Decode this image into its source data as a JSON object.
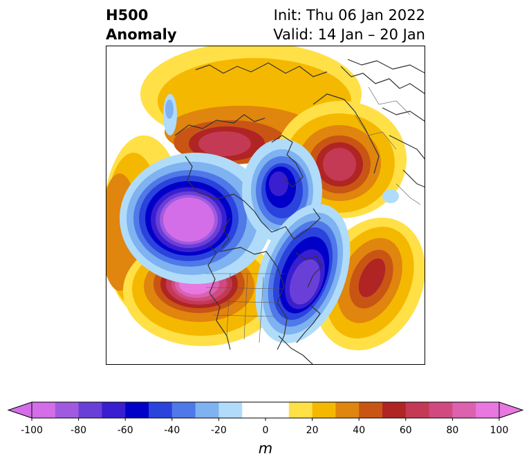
{
  "title": {
    "left_line1": "H500",
    "left_line2": "Anomaly",
    "init": "Init: Thu 06 Jan 2022",
    "valid": "Valid: 14 Jan – 20 Jan"
  },
  "colorbar": {
    "unit": "m",
    "min": -100,
    "max": 100,
    "step": 10,
    "tick_labels": [
      "-100",
      "-80",
      "-60",
      "-40",
      "-20",
      "0",
      "20",
      "40",
      "60",
      "80",
      "100"
    ],
    "colors": [
      "#d36ee8",
      "#a05ae0",
      "#6a3fd8",
      "#3a1fd0",
      "#0000c8",
      "#2a43dc",
      "#4f78e8",
      "#7fb2f0",
      "#b0dcfa",
      "#ffffff",
      "#ffffff",
      "#ffe047",
      "#f5b800",
      "#e0850e",
      "#c95514",
      "#b02424",
      "#c43a55",
      "#d04a80",
      "#dc62b0",
      "#e878e0"
    ],
    "under_color": "#d36ee8",
    "over_color": "#e878e0"
  },
  "map": {
    "projection": "north-polar-stereographic",
    "ocean_color": "#ffffff",
    "coast_color": "#333333",
    "anomaly_centers": [
      {
        "name": "gulf-of-alaska-low",
        "value": -100
      },
      {
        "name": "western-us-high",
        "value": 100
      },
      {
        "name": "eastern-canada-low",
        "value": -80
      },
      {
        "name": "north-atlantic-high",
        "value": 60
      },
      {
        "name": "siberia-high",
        "value": 70
      },
      {
        "name": "europe-high",
        "value": 70
      },
      {
        "name": "arctic-low",
        "value": -70
      }
    ]
  }
}
